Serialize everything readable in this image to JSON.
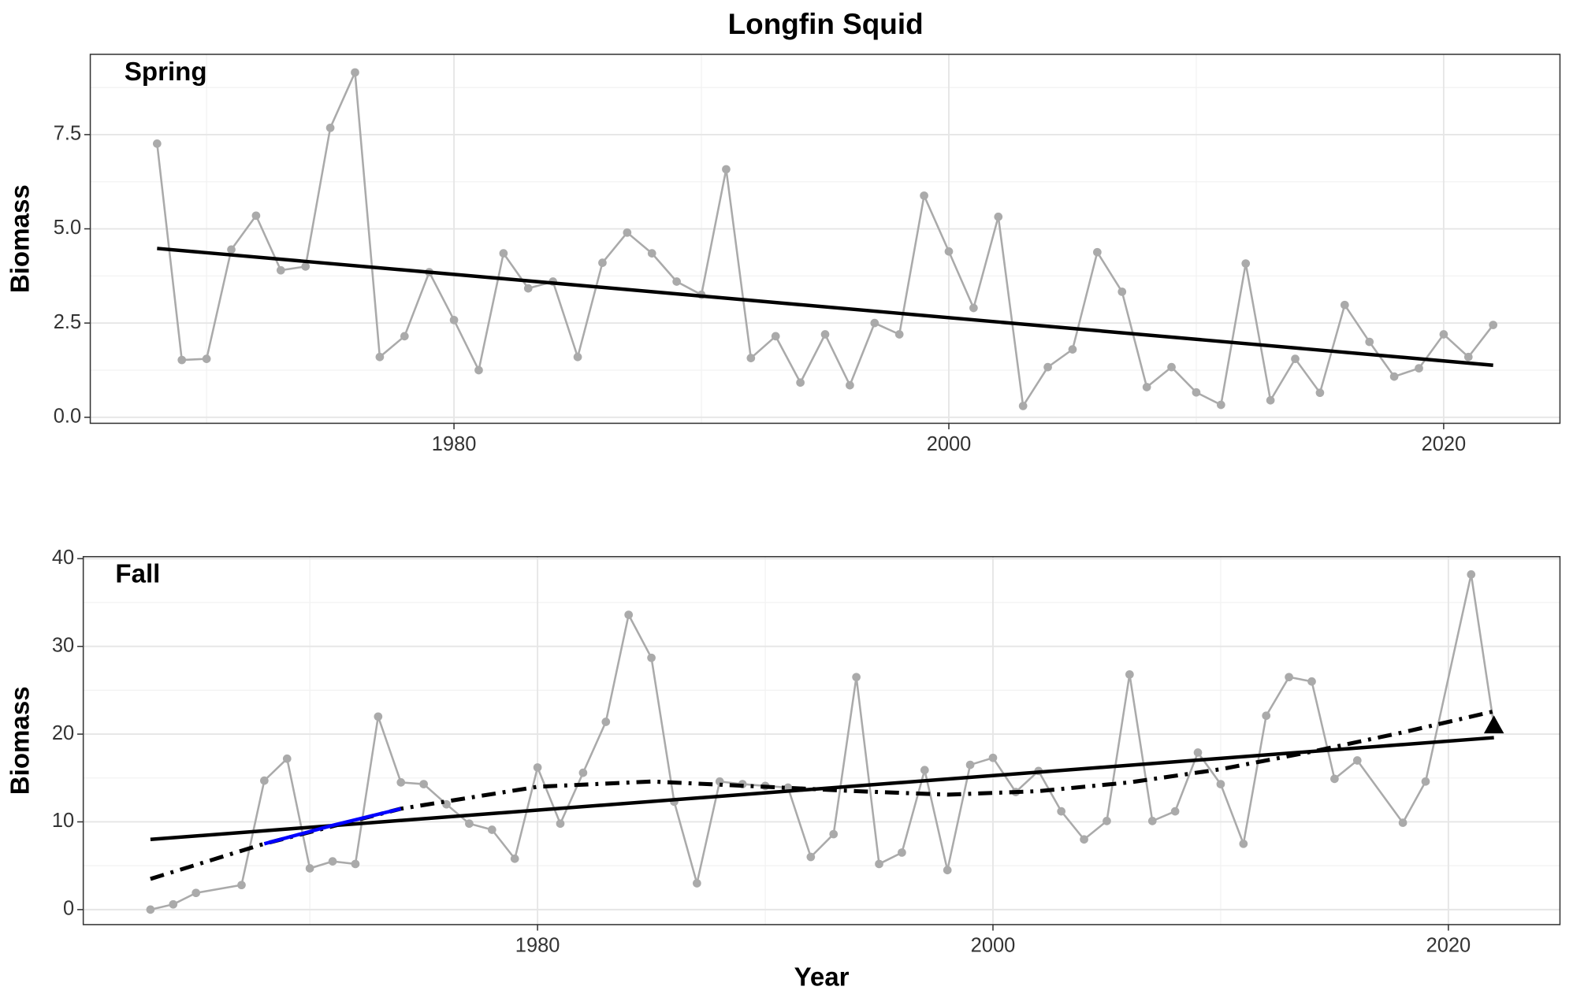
{
  "title": "Longfin Squid",
  "chart_data": [
    {
      "type": "line",
      "panel_label": "Spring",
      "ylabel": "Biomass",
      "xlim": [
        1965.3,
        2024.7
      ],
      "xticks": [
        1980,
        2000,
        2020
      ],
      "ylim": [
        -0.16,
        9.63
      ],
      "yticks": [
        {
          "value": 0,
          "label": "0.0"
        },
        {
          "value": 2.5,
          "label": "2.5"
        },
        {
          "value": 5,
          "label": "5.0"
        },
        {
          "value": 7.5,
          "label": "7.5"
        }
      ],
      "grid": true,
      "series": [
        {
          "style": "points",
          "color": "#aaaaaa",
          "x": [
            1968,
            1969,
            1970,
            1971,
            1972,
            1973,
            1974,
            1975,
            1976,
            1977,
            1978,
            1979,
            1980,
            1981,
            1982,
            1983,
            1984,
            1985,
            1986,
            1987,
            1988,
            1989,
            1990,
            1991,
            1992,
            1993,
            1994,
            1995,
            1996,
            1997,
            1998,
            1999,
            2000,
            2001,
            2002,
            2003,
            2004,
            2005,
            2006,
            2007,
            2008,
            2009,
            2010,
            2011,
            2012,
            2013,
            2014,
            2015,
            2016,
            2017,
            2018,
            2019,
            2020,
            2021,
            2022
          ],
          "values": [
            7.26,
            1.52,
            1.55,
            4.45,
            5.35,
            3.9,
            4.0,
            7.68,
            9.15,
            1.6,
            2.15,
            3.85,
            2.58,
            1.25,
            4.35,
            3.42,
            3.6,
            1.6,
            4.1,
            4.9,
            4.35,
            3.6,
            3.25,
            6.58,
            1.57,
            2.15,
            0.92,
            2.2,
            0.85,
            2.5,
            2.2,
            5.88,
            4.4,
            2.9,
            5.32,
            0.3,
            1.33,
            1.8,
            4.38,
            3.33,
            0.8,
            1.33,
            0.66,
            0.33,
            4.08,
            0.45,
            1.55,
            0.65,
            2.98,
            2.0,
            1.08,
            1.3,
            2.2,
            1.6,
            2.45
          ]
        },
        {
          "style": "solid",
          "color": "#000000",
          "x": [
            1968,
            2022
          ],
          "values": [
            4.48,
            1.38
          ]
        }
      ]
    },
    {
      "type": "line",
      "panel_label": "Fall",
      "ylabel": "Biomass",
      "xlabel": "Year",
      "xlim": [
        1960.05,
        2024.9
      ],
      "xticks": [
        1980,
        2000,
        2020
      ],
      "ylim": [
        -1.71,
        40.23
      ],
      "yticks": [
        0,
        10,
        20,
        30,
        40
      ],
      "grid": true,
      "last_point_marker": "triangle",
      "series": [
        {
          "style": "points",
          "color": "#aaaaaa",
          "x": [
            1963,
            1964,
            1965,
            1967,
            1968,
            1969,
            1970,
            1971,
            1972,
            1973,
            1974,
            1975,
            1976,
            1977,
            1978,
            1979,
            1980,
            1981,
            1982,
            1983,
            1984,
            1985,
            1986,
            1987,
            1988,
            1989,
            1990,
            1991,
            1992,
            1993,
            1994,
            1995,
            1996,
            1997,
            1998,
            1999,
            2000,
            2001,
            2002,
            2003,
            2004,
            2005,
            2006,
            2007,
            2008,
            2009,
            2010,
            2011,
            2012,
            2013,
            2014,
            2015,
            2016,
            2018,
            2019,
            2021,
            2022
          ],
          "values": [
            0.0,
            0.6,
            1.9,
            2.8,
            14.7,
            17.2,
            4.7,
            5.5,
            5.2,
            22.0,
            14.5,
            14.3,
            12.0,
            9.8,
            9.1,
            5.8,
            16.2,
            9.8,
            15.6,
            21.4,
            33.6,
            28.7,
            12.3,
            3.0,
            14.6,
            14.3,
            14.1,
            13.9,
            6.0,
            8.6,
            26.5,
            5.2,
            6.5,
            15.9,
            4.5,
            16.5,
            17.3,
            13.4,
            15.8,
            11.2,
            8.0,
            10.1,
            26.8,
            10.1,
            11.2,
            17.9,
            14.3,
            7.5,
            22.1,
            26.5,
            26.0,
            14.9,
            17.0,
            9.9,
            14.6,
            38.2,
            21.0
          ]
        },
        {
          "style": "solid",
          "color": "#000000",
          "x": [
            1963,
            2022
          ],
          "values": [
            8.0,
            19.6
          ]
        },
        {
          "style": "dashdot",
          "color": "#000000",
          "x": [
            1963,
            1968,
            1974,
            1980,
            1985,
            1990,
            1994,
            1998,
            2002,
            2006,
            2010,
            2014,
            2018,
            2022
          ],
          "values": [
            3.5,
            7.5,
            11.5,
            14.0,
            14.6,
            14.0,
            13.5,
            13.1,
            13.5,
            14.5,
            16.0,
            18.0,
            20.2,
            22.6
          ]
        },
        {
          "style": "solid",
          "color": "#0000ff",
          "x": [
            1968,
            1971,
            1974
          ],
          "values": [
            7.5,
            9.6,
            11.5
          ]
        }
      ]
    }
  ]
}
